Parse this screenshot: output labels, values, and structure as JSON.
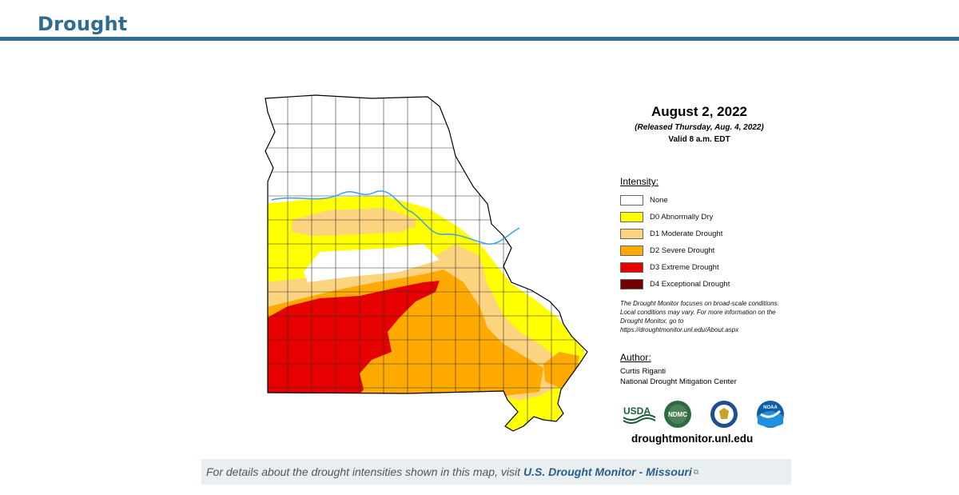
{
  "header": {
    "title": "Drought"
  },
  "map": {
    "date": "August 2, 2022",
    "released": "(Released Thursday, Aug. 4, 2022)",
    "valid": "Valid 8 a.m. EDT",
    "intensity_title": "Intensity:",
    "legend": [
      {
        "label": "None",
        "color": "#ffffff"
      },
      {
        "label": "D0 Abnormally Dry",
        "color": "#ffff00"
      },
      {
        "label": "D1 Moderate Drought",
        "color": "#fcd37f"
      },
      {
        "label": "D2 Severe Drought",
        "color": "#ffaa00"
      },
      {
        "label": "D3 Extreme Drought",
        "color": "#e60000"
      },
      {
        "label": "D4 Exceptional Drought",
        "color": "#730000"
      }
    ],
    "note": "The Drought Monitor focuses on broad-scale conditions. Local conditions may vary. For more information on the Drought Monitor, go to https://droughtmonitor.unl.edu/About.aspx",
    "author_title": "Author:",
    "author_name": "Curtis Riganti",
    "author_org": "National Drought Mitigation Center",
    "logos": {
      "usda": "USDA",
      "ndmc": "NDMC",
      "noaa": "NOAA"
    },
    "site": "droughtmonitor.unl.edu",
    "river_color": "#3aa0e8"
  },
  "footer": {
    "text": "For details about the drought intensities shown in this map, visit",
    "link": "U.S. Drought Monitor - Missouri"
  }
}
